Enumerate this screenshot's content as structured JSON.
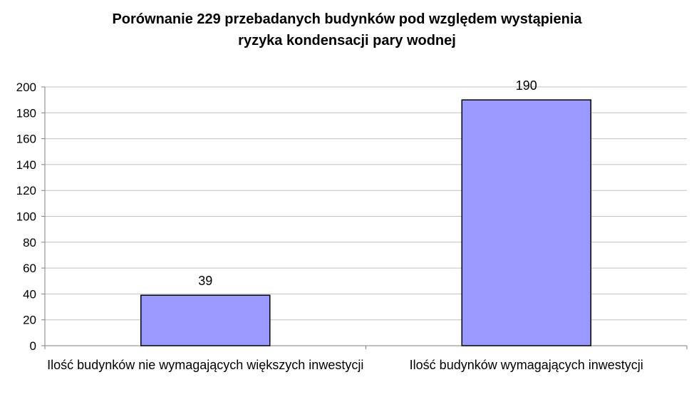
{
  "chart_data": {
    "type": "bar",
    "title": "Porównanie 229 przebadanych budynków pod względem wystąpienia ryzyka kondensacji pary wodnej",
    "title_lines": [
      "Porównanie 229 przebadanych budynków pod względem wystąpienia",
      "ryzyka kondensacji pary wodnej"
    ],
    "categories": [
      "Ilość budynków nie wymagających większych inwestycji",
      "Ilość budynków wymagających inwestycji"
    ],
    "values": [
      39,
      190
    ],
    "data_labels": [
      "39",
      "190"
    ],
    "xlabel": "",
    "ylabel": "",
    "ylim": [
      0,
      200
    ],
    "yticks": [
      0,
      20,
      40,
      60,
      80,
      100,
      120,
      140,
      160,
      180,
      200
    ],
    "grid": true,
    "legend": "none",
    "colors": {
      "bar_fill": "#9999ff",
      "bar_stroke": "#000000",
      "grid": "#c0c0c0",
      "axis": "#808080"
    }
  }
}
